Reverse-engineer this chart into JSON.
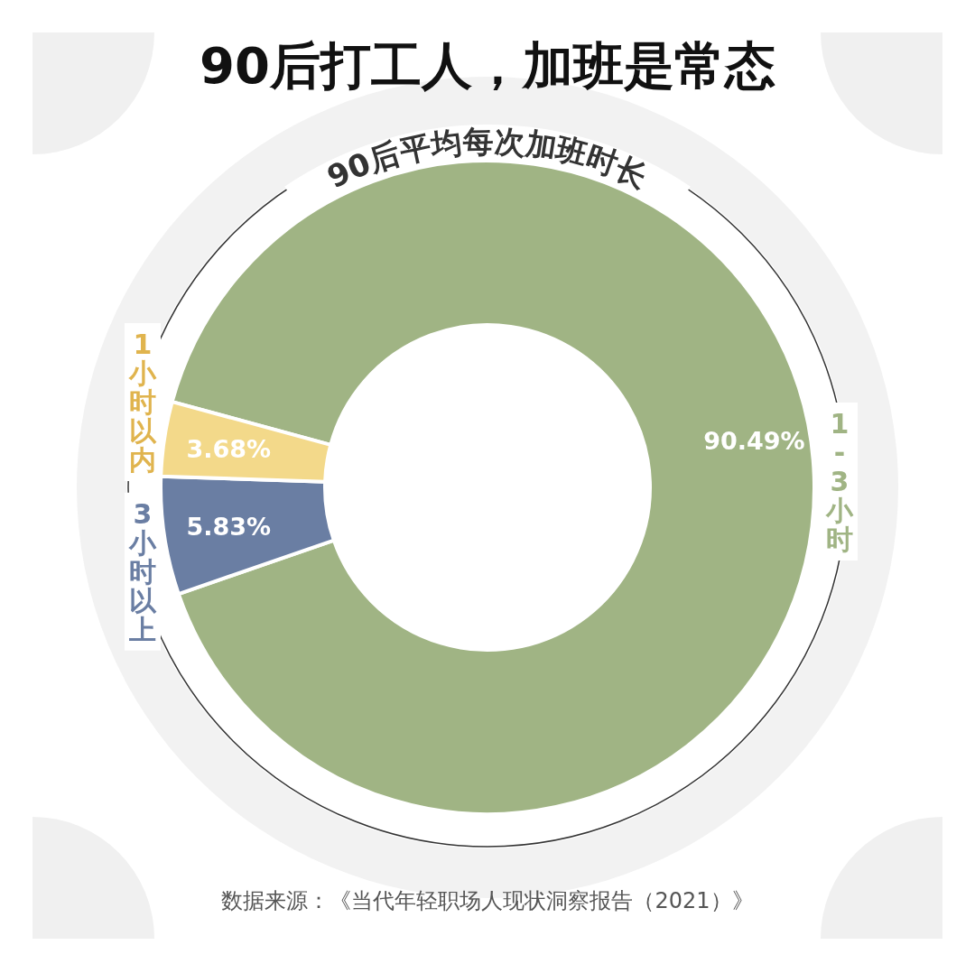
{
  "chart_data": {
    "type": "donut",
    "title": "90后打工人，加班是常态",
    "subtitle": "90后平均每次加班时长",
    "categories": [
      "1-3小时",
      "3小时以上",
      "1小时以内"
    ],
    "values": [
      90.49,
      5.83,
      3.68
    ],
    "colors": [
      "#a0b484",
      "#6a7ea3",
      "#f3d98a"
    ],
    "value_labels": [
      "90.49%",
      "5.83%",
      "3.68%"
    ],
    "annotations": [
      "数据来源：《当代年轻职场人现状洞察报告（2021）》"
    ]
  }
}
